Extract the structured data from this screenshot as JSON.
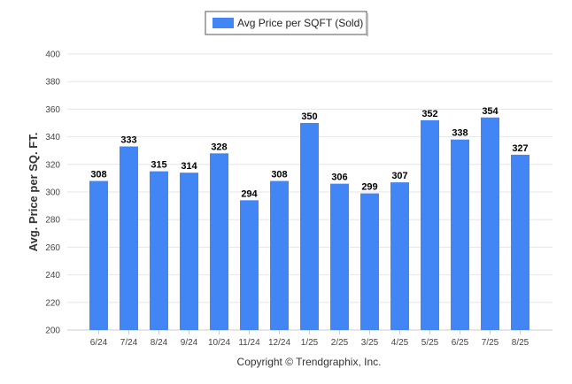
{
  "chart_data": {
    "type": "bar",
    "title": "",
    "xlabel": "",
    "ylabel": "Avg. Price per SQ. FT.",
    "legend": {
      "position": "top-center",
      "entries": [
        "Avg Price per SQFT (Sold)"
      ]
    },
    "categories": [
      "6/24",
      "7/24",
      "8/24",
      "9/24",
      "10/24",
      "11/24",
      "12/24",
      "1/25",
      "2/25",
      "3/25",
      "4/25",
      "5/25",
      "6/25",
      "7/25",
      "8/25"
    ],
    "series": [
      {
        "name": "Avg Price per SQFT (Sold)",
        "values": [
          308,
          333,
          315,
          314,
          328,
          294,
          308,
          350,
          306,
          299,
          307,
          352,
          338,
          354,
          327
        ],
        "color": "#4285f4"
      }
    ],
    "ylim": [
      200,
      400
    ],
    "yticks": [
      200,
      220,
      240,
      260,
      280,
      300,
      320,
      340,
      360,
      380,
      400
    ],
    "grid": true,
    "data_labels": true
  },
  "credit": "Copyright © Trendgraphix, Inc."
}
